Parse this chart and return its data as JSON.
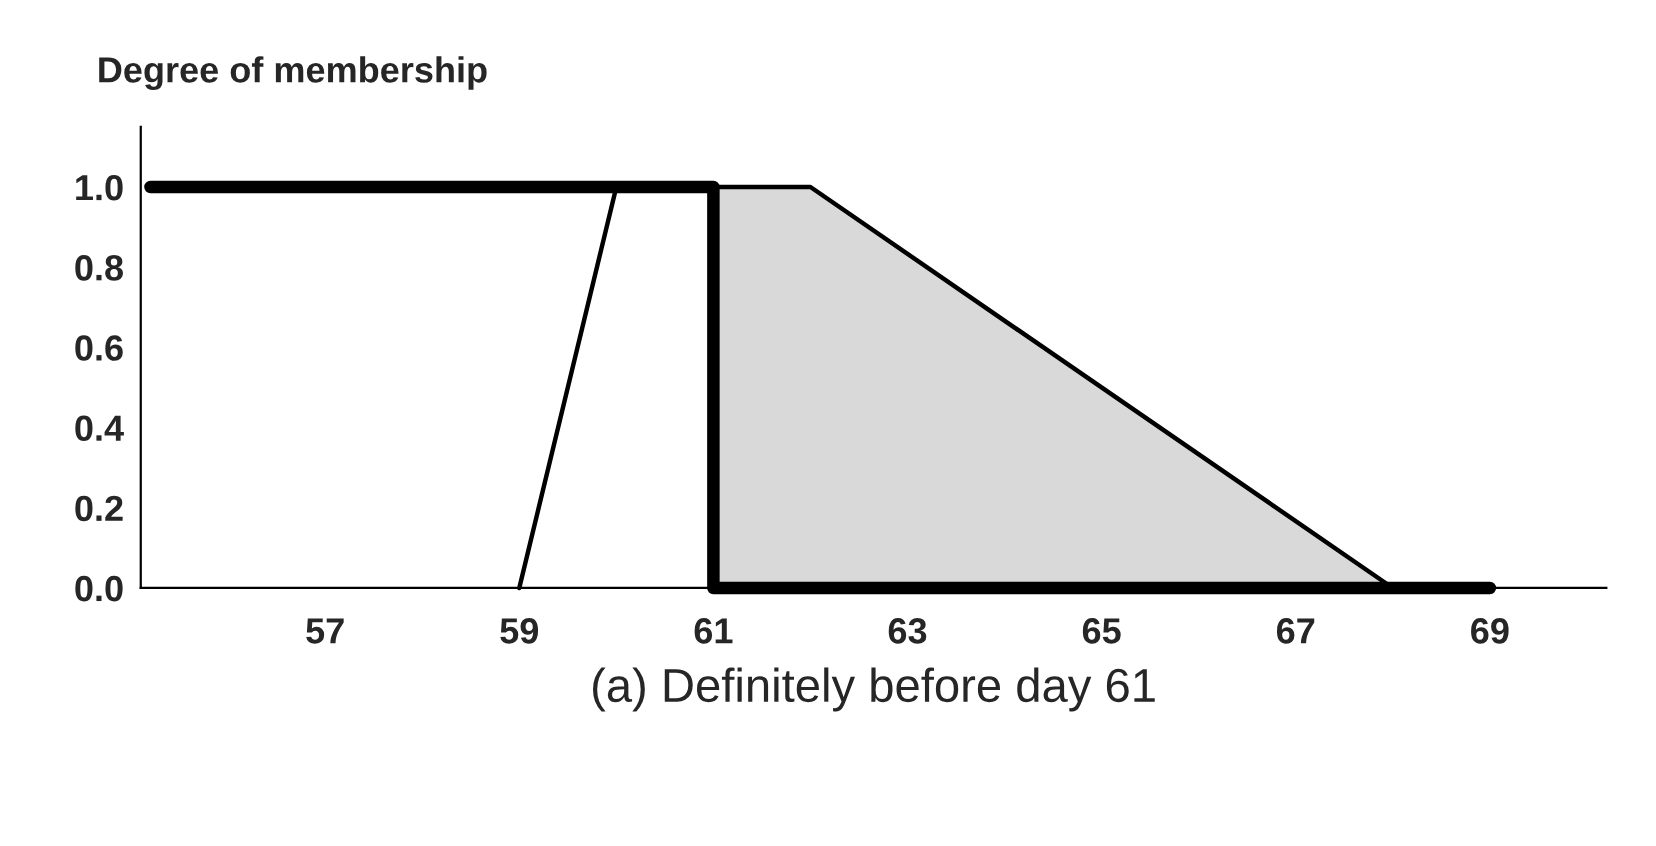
{
  "chart_data": {
    "type": "line",
    "xlabel": "(a) Definitely before day 61",
    "ylabel": "Degree of membership",
    "series": [
      {
        "type": "area",
        "color": "#d9d9d9",
        "x": [
          61,
          62,
          68
        ],
        "values": [
          1.0,
          1.0,
          0.0
        ]
      },
      {
        "color": "#000000",
        "x": [
          59,
          60,
          62,
          68
        ],
        "values": [
          0.0,
          1.0,
          1.0,
          0.0
        ]
      },
      {
        "color": "#000000",
        "x": [
          55.2,
          61,
          61,
          69
        ],
        "values": [
          1.0,
          1.0,
          0.0,
          0.0
        ]
      }
    ],
    "xlim": [
      55.1,
      70.2
    ],
    "ylim": [
      0,
      1.15
    ],
    "xticks": [
      57,
      59,
      61,
      63,
      65,
      67,
      69
    ],
    "yticks": [
      {
        "value": 0,
        "label": "0.0"
      },
      {
        "value": 0.2,
        "label": "0.2"
      },
      {
        "value": 0.4,
        "label": "0.4"
      },
      {
        "value": 0.6,
        "label": "0.6"
      },
      {
        "value": 0.8,
        "label": "0.8"
      },
      {
        "value": 1.0,
        "label": "1.0"
      }
    ],
    "grid": false,
    "legend": false
  }
}
